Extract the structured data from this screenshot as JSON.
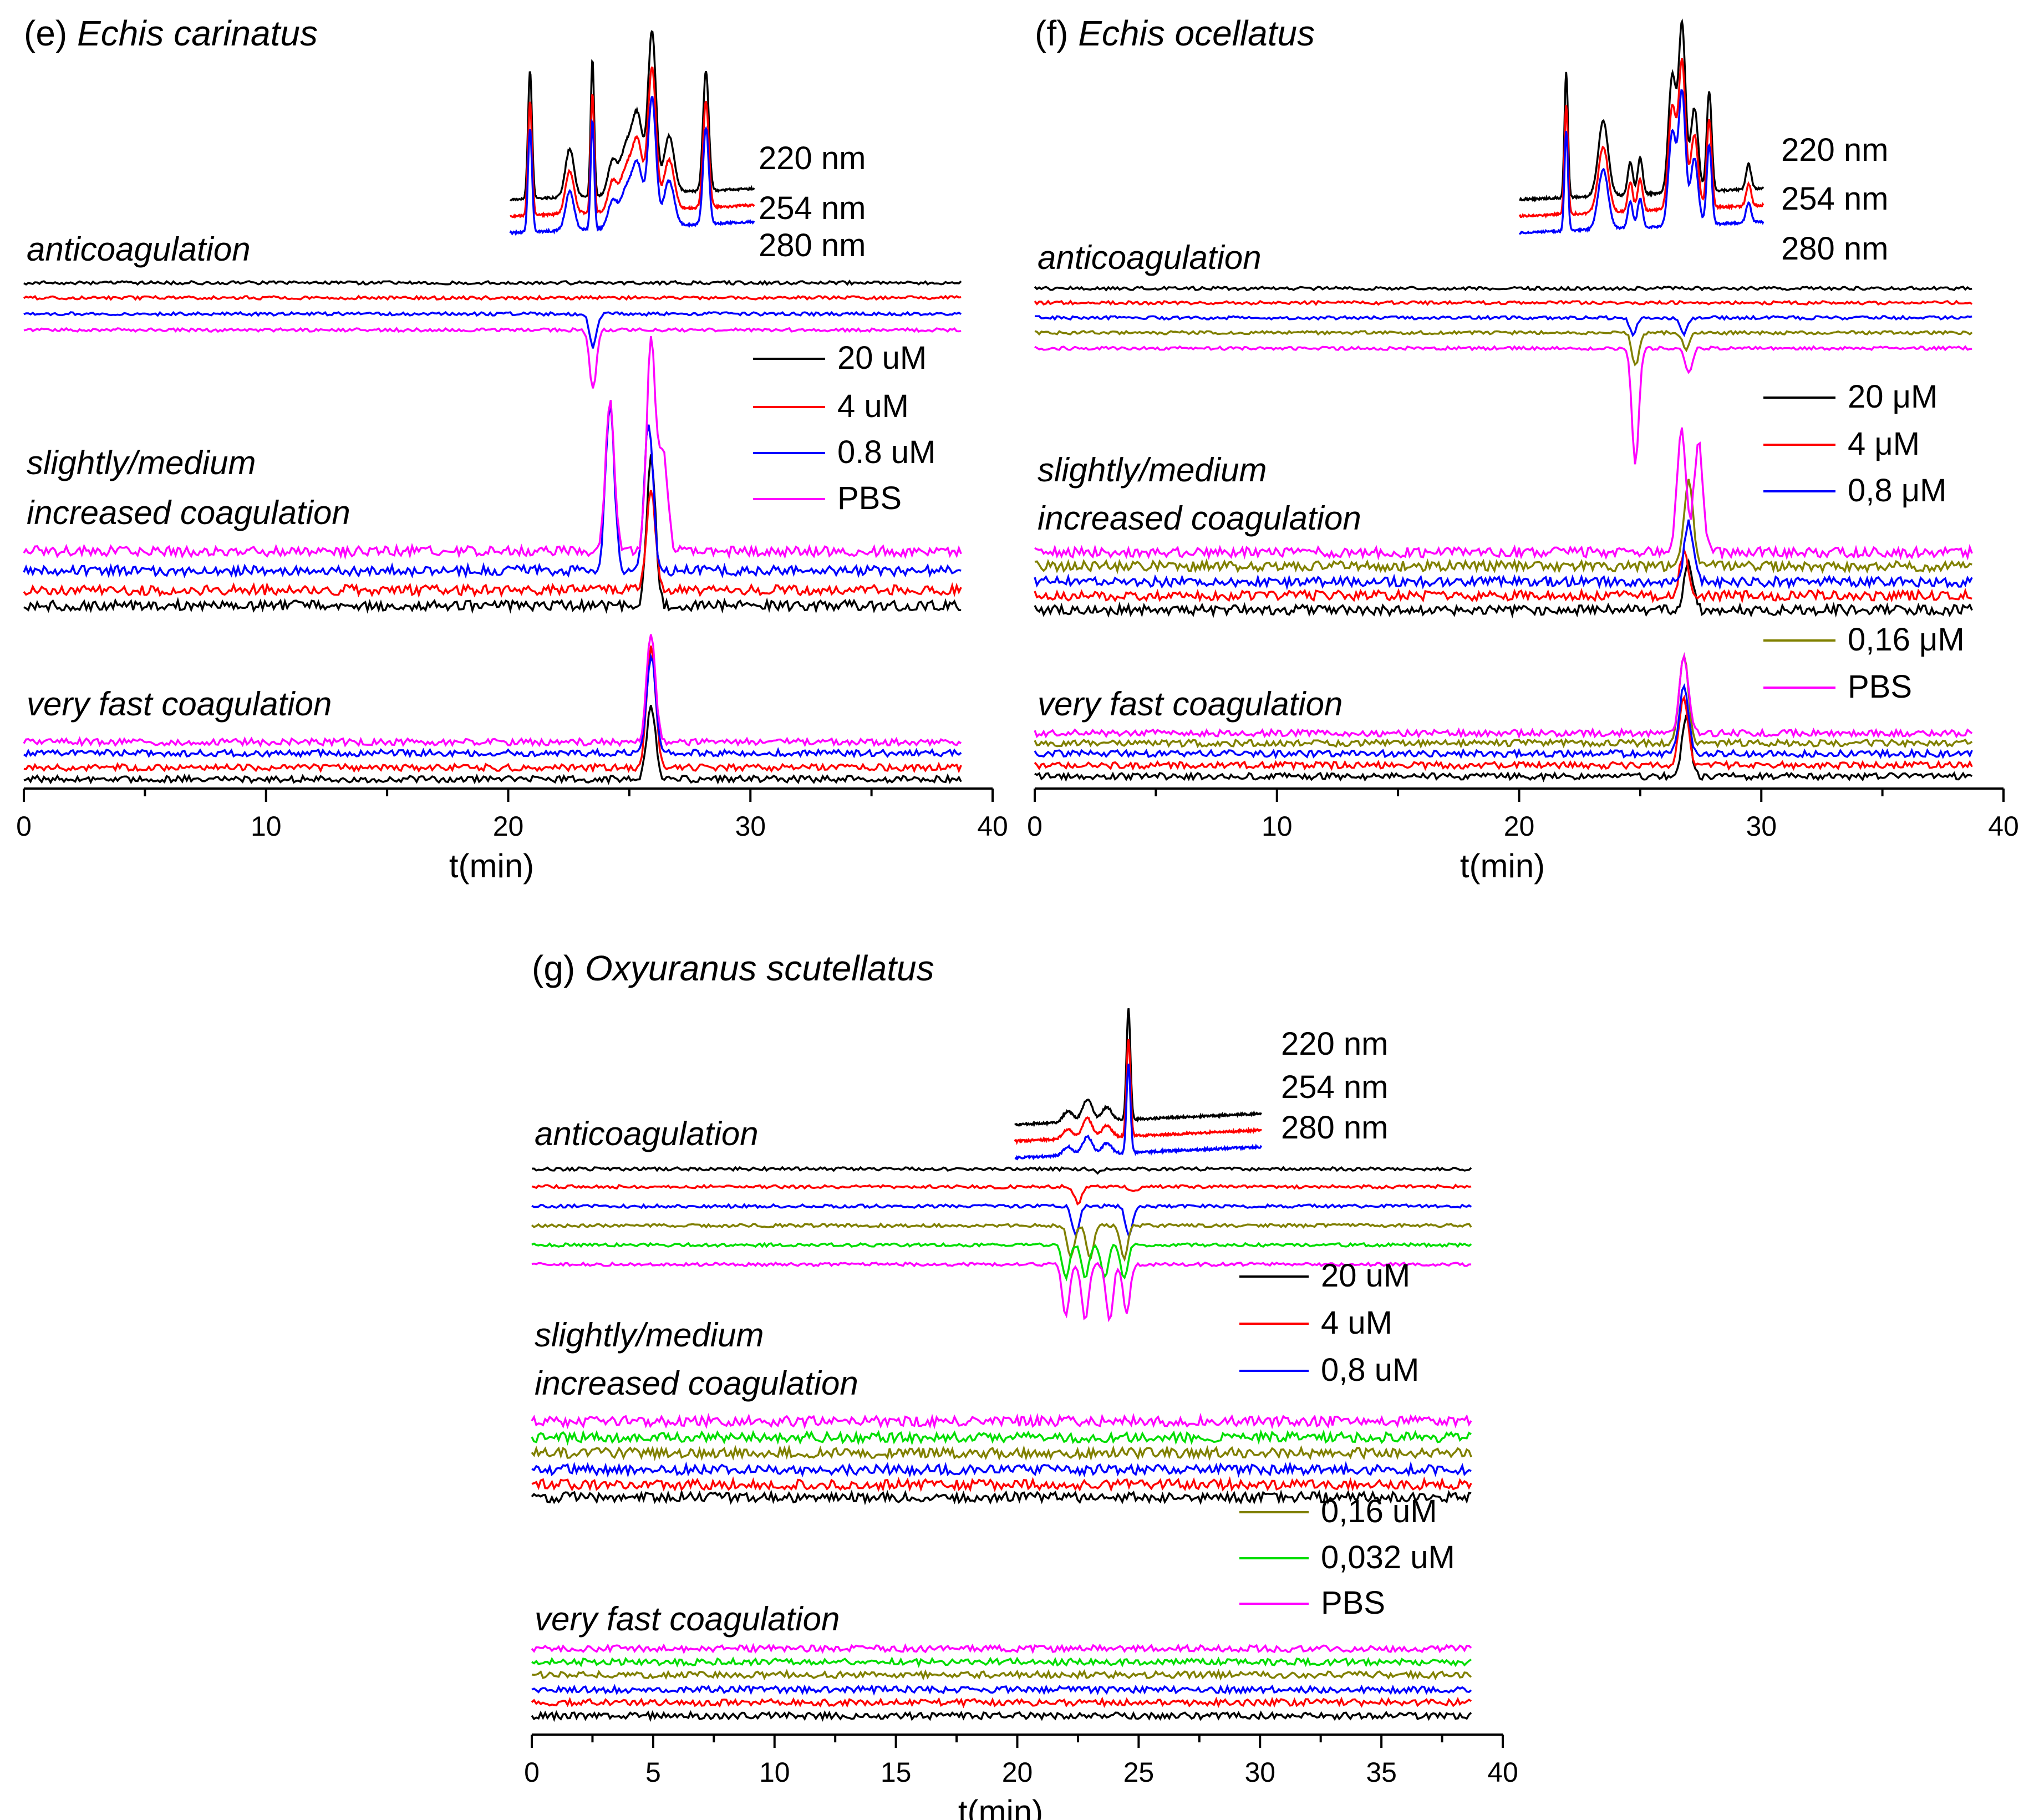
{
  "colors": {
    "c20": "#000000",
    "c4": "#ff0000",
    "c08": "#0000ff",
    "c016": "#808000",
    "c0032": "#00dd00",
    "cPBS": "#ff00ff"
  },
  "chart_data": [
    {
      "id": "e",
      "type": "line",
      "panel_label": "(e)",
      "species": "Echis carinatus",
      "xlabel": "t(min)",
      "xlim": [
        0,
        40
      ],
      "xticks": [
        "0",
        "10",
        "20",
        "30",
        "40"
      ],
      "sections": [
        {
          "label": [
            "anticoagulation"
          ]
        },
        {
          "label": [
            "slightly/medium",
            "increased coagulation"
          ]
        },
        {
          "label": [
            "very fast coagulation"
          ]
        }
      ],
      "uv_legend": [
        {
          "label": "220 nm",
          "color": "#000000"
        },
        {
          "label": "254 nm",
          "color": "#ff0000"
        },
        {
          "label": "280 nm",
          "color": "#0000ff"
        }
      ],
      "uv_range": [
        21,
        29.6
      ],
      "uv_peaks": [
        {
          "t": 21.7,
          "h": 0.8,
          "w": 0.07
        },
        {
          "t": 23.1,
          "h": 0.3,
          "w": 0.15
        },
        {
          "t": 23.9,
          "h": 0.85,
          "w": 0.06
        },
        {
          "t": 24.6,
          "h": 0.2,
          "w": 0.15
        },
        {
          "t": 25.1,
          "h": 0.3,
          "w": 0.22
        },
        {
          "t": 25.5,
          "h": 0.45,
          "w": 0.18
        },
        {
          "t": 26.0,
          "h": 1.0,
          "w": 0.14
        },
        {
          "t": 26.6,
          "h": 0.35,
          "w": 0.18
        },
        {
          "t": 27.9,
          "h": 0.75,
          "w": 0.1
        }
      ],
      "conc_legend": [
        {
          "label": "20 uM",
          "color": "#000000"
        },
        {
          "label": "4 uM",
          "color": "#ff0000"
        },
        {
          "label": "0.8 uM",
          "color": "#0000ff"
        },
        {
          "label": "PBS",
          "color": "#ff00ff"
        }
      ],
      "series": [
        {
          "name": "20 uM",
          "color": "#000000",
          "anticoagulation": [],
          "slightly_medium": [
            {
              "t": 25.9,
              "h": 0.9
            }
          ],
          "very_fast": [
            {
              "t": 25.9,
              "h": 0.6
            }
          ]
        },
        {
          "name": "4 uM",
          "color": "#ff0000",
          "anticoagulation": [],
          "slightly_medium": [
            {
              "t": 25.9,
              "h": 0.6
            }
          ],
          "very_fast": [
            {
              "t": 25.9,
              "h": 1.0
            }
          ]
        },
        {
          "name": "0.8 uM",
          "color": "#0000ff",
          "anticoagulation": [
            {
              "t": 23.5,
              "h": -0.5
            }
          ],
          "slightly_medium": [
            {
              "t": 24.2,
              "h": 1.0
            },
            {
              "t": 25.8,
              "h": 0.9
            }
          ],
          "very_fast": [
            {
              "t": 25.9,
              "h": 0.8
            }
          ]
        },
        {
          "name": "PBS",
          "color": "#ff00ff",
          "anticoagulation": [
            {
              "t": 23.5,
              "h": -0.9
            }
          ],
          "slightly_medium": [
            {
              "t": 24.2,
              "h": 0.9
            },
            {
              "t": 25.9,
              "h": 1.3
            },
            {
              "t": 26.4,
              "h": 0.6
            }
          ],
          "very_fast": [
            {
              "t": 25.9,
              "h": 0.9
            }
          ]
        }
      ]
    },
    {
      "id": "f",
      "type": "line",
      "panel_label": "(f)",
      "species": "Echis ocellatus",
      "xlabel": "t(min)",
      "xlim": [
        0,
        40
      ],
      "xticks": [
        "0",
        "10",
        "20",
        "30",
        "40"
      ],
      "sections": [
        {
          "label": [
            "anticoagulation"
          ]
        },
        {
          "label": [
            "slightly/medium",
            "increased coagulation"
          ]
        },
        {
          "label": [
            "very fast coagulation"
          ]
        }
      ],
      "uv_legend": [
        {
          "label": "220 nm",
          "color": "#000000"
        },
        {
          "label": "254 nm",
          "color": "#ff0000"
        },
        {
          "label": "280 nm",
          "color": "#0000ff"
        }
      ],
      "uv_range": [
        20,
        29.9
      ],
      "uv_peaks": [
        {
          "t": 21.9,
          "h": 0.75,
          "w": 0.07
        },
        {
          "t": 23.4,
          "h": 0.45,
          "w": 0.2
        },
        {
          "t": 24.5,
          "h": 0.2,
          "w": 0.1
        },
        {
          "t": 24.9,
          "h": 0.22,
          "w": 0.1
        },
        {
          "t": 26.2,
          "h": 0.7,
          "w": 0.15
        },
        {
          "t": 26.6,
          "h": 1.0,
          "w": 0.14
        },
        {
          "t": 27.1,
          "h": 0.5,
          "w": 0.15
        },
        {
          "t": 27.7,
          "h": 0.6,
          "w": 0.1
        },
        {
          "t": 29.3,
          "h": 0.15,
          "w": 0.1
        }
      ],
      "conc_legend": [
        {
          "label": "20 μM",
          "color": "#000000"
        },
        {
          "label": "4 μM",
          "color": "#ff0000"
        },
        {
          "label": "0,8 μM",
          "color": "#0000ff"
        },
        {
          "label": "0,16 μM",
          "color": "#808000"
        },
        {
          "label": "PBS",
          "color": "#ff00ff"
        }
      ],
      "series": [
        {
          "name": "20 μM",
          "color": "#000000",
          "anticoagulation": [],
          "slightly_medium": [
            {
              "t": 27.0,
              "h": 0.4
            }
          ],
          "very_fast": [
            {
              "t": 26.9,
              "h": 0.6
            }
          ]
        },
        {
          "name": "4 μM",
          "color": "#ff0000",
          "anticoagulation": [],
          "slightly_medium": [
            {
              "t": 26.8,
              "h": 0.35
            }
          ],
          "very_fast": [
            {
              "t": 26.8,
              "h": 0.7
            }
          ]
        },
        {
          "name": "0,8 μM",
          "color": "#0000ff",
          "anticoagulation": [
            {
              "t": 24.7,
              "h": -0.2
            },
            {
              "t": 26.8,
              "h": -0.2
            }
          ],
          "slightly_medium": [
            {
              "t": 27.0,
              "h": 0.5
            }
          ],
          "very_fast": [
            {
              "t": 26.8,
              "h": 0.7
            }
          ]
        },
        {
          "name": "0,16 μM",
          "color": "#808000",
          "anticoagulation": [
            {
              "t": 24.8,
              "h": -0.4
            },
            {
              "t": 26.9,
              "h": -0.2
            }
          ],
          "slightly_medium": [
            {
              "t": 27.0,
              "h": 0.7
            }
          ],
          "very_fast": [
            {
              "t": 26.8,
              "h": 0.9
            }
          ]
        },
        {
          "name": "PBS",
          "color": "#ff00ff",
          "anticoagulation": [
            {
              "t": 24.8,
              "h": -1.4
            },
            {
              "t": 27.0,
              "h": -0.3
            }
          ],
          "slightly_medium": [
            {
              "t": 26.7,
              "h": 1.0
            },
            {
              "t": 27.4,
              "h": 0.9
            }
          ],
          "very_fast": [
            {
              "t": 26.8,
              "h": 0.8
            }
          ]
        }
      ]
    },
    {
      "id": "g",
      "type": "line",
      "panel_label": "(g)",
      "species": "Oxyuranus scutellatus",
      "xlabel": "t(min)",
      "xlim": [
        0,
        40
      ],
      "xticks": [
        "0",
        "5",
        "10",
        "15",
        "20",
        "25",
        "30",
        "35",
        "40"
      ],
      "sections": [
        {
          "label": [
            "anticoagulation"
          ]
        },
        {
          "label": [
            "slightly/medium",
            "increased coagulation"
          ]
        },
        {
          "label": [
            "very fast coagulation"
          ]
        }
      ],
      "uv_legend": [
        {
          "label": "220 nm",
          "color": "#000000"
        },
        {
          "label": "254 nm",
          "color": "#ff0000"
        },
        {
          "label": "280 nm",
          "color": "#0000ff"
        }
      ],
      "uv_range": [
        20.3,
        30.5
      ],
      "uv_peaks": [
        {
          "t": 22.5,
          "h": 0.1,
          "w": 0.2
        },
        {
          "t": 23.3,
          "h": 0.2,
          "w": 0.2
        },
        {
          "t": 24.1,
          "h": 0.12,
          "w": 0.2
        },
        {
          "t": 25.0,
          "h": 1.0,
          "w": 0.08
        }
      ],
      "conc_legend": [
        {
          "label": "20 uM",
          "color": "#000000"
        },
        {
          "label": "4 uM",
          "color": "#ff0000"
        },
        {
          "label": "0,8 uM",
          "color": "#0000ff"
        },
        {
          "label": "0,16 uM",
          "color": "#808000"
        },
        {
          "label": "0,032 uM",
          "color": "#00dd00"
        },
        {
          "label": "PBS",
          "color": "#ff00ff"
        }
      ],
      "series": [
        {
          "name": "20 uM",
          "color": "#000000",
          "anticoagulation": [
            {
              "t": 23.3,
              "h": -0.1
            }
          ],
          "slightly_medium": [],
          "very_fast": []
        },
        {
          "name": "4 uM",
          "color": "#ff0000",
          "anticoagulation": [
            {
              "t": 22.5,
              "h": -0.5
            },
            {
              "t": 24.8,
              "h": -0.15
            }
          ],
          "slightly_medium": [],
          "very_fast": []
        },
        {
          "name": "0,8 uM",
          "color": "#0000ff",
          "anticoagulation": [
            {
              "t": 22.4,
              "h": -0.9
            },
            {
              "t": 24.6,
              "h": -0.9
            }
          ],
          "slightly_medium": [],
          "very_fast": []
        },
        {
          "name": "0,16 uM",
          "color": "#808000",
          "anticoagulation": [
            {
              "t": 22.2,
              "h": -1.0
            },
            {
              "t": 23.0,
              "h": -1.0
            },
            {
              "t": 24.4,
              "h": -1.0
            }
          ],
          "slightly_medium": [],
          "very_fast": []
        },
        {
          "name": "0,032 uM",
          "color": "#00dd00",
          "anticoagulation": [
            {
              "t": 22.0,
              "h": -1.0
            },
            {
              "t": 22.8,
              "h": -1.0
            },
            {
              "t": 23.6,
              "h": -1.0
            },
            {
              "t": 24.4,
              "h": -1.0
            }
          ],
          "slightly_medium": [],
          "very_fast": []
        },
        {
          "name": "PBS",
          "color": "#ff00ff",
          "anticoagulation": [
            {
              "t": 22.0,
              "h": -1.6
            },
            {
              "t": 22.8,
              "h": -1.7
            },
            {
              "t": 23.8,
              "h": -1.7
            },
            {
              "t": 24.5,
              "h": -1.5
            }
          ],
          "slightly_medium": [],
          "very_fast": []
        }
      ]
    }
  ]
}
